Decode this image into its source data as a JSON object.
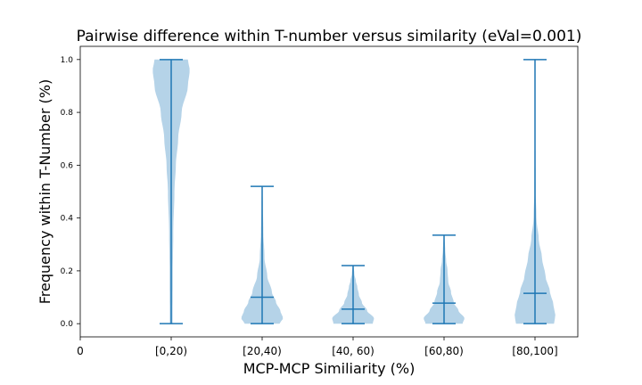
{
  "chart_data": {
    "type": "violin",
    "title": "Pairwise difference within T-number versus similarity (eVal=0.001)",
    "xlabel": "MCP-MCP Similiarity (%)",
    "ylabel": "Frequency within T-Number (%)",
    "ylim": [
      -0.05,
      1.05
    ],
    "yticks": [
      "0.0",
      "0.2",
      "0.4",
      "0.6",
      "0.8",
      "1.0"
    ],
    "xticks": [
      "0",
      "[0,20)",
      "[20,40)",
      "[40, 60)",
      "[60,80)",
      "[80,100]"
    ],
    "fill_color": "#b5d3e8",
    "line_color": "#1f77b4",
    "violins": [
      {
        "category": "[0,20)",
        "min": 0.0,
        "max": 1.0,
        "mean": null,
        "density": [
          [
            0.0,
            0.06
          ],
          [
            0.2,
            0.07
          ],
          [
            0.35,
            0.09
          ],
          [
            0.5,
            0.14
          ],
          [
            0.6,
            0.2
          ],
          [
            0.7,
            0.3
          ],
          [
            0.8,
            0.45
          ],
          [
            0.9,
            0.72
          ],
          [
            0.96,
            0.8
          ],
          [
            1.0,
            0.72
          ]
        ]
      },
      {
        "category": "[20,40)",
        "min": 0.0,
        "max": 0.52,
        "mean": 0.1,
        "density": [
          [
            0.0,
            0.75
          ],
          [
            0.02,
            0.9
          ],
          [
            0.05,
            0.78
          ],
          [
            0.08,
            0.6
          ],
          [
            0.12,
            0.42
          ],
          [
            0.18,
            0.22
          ],
          [
            0.25,
            0.1
          ],
          [
            0.35,
            0.05
          ],
          [
            0.45,
            0.03
          ],
          [
            0.52,
            0.02
          ]
        ]
      },
      {
        "category": "[40, 60)",
        "min": 0.0,
        "max": 0.22,
        "mean": 0.055,
        "density": [
          [
            0.0,
            0.85
          ],
          [
            0.02,
            0.9
          ],
          [
            0.05,
            0.6
          ],
          [
            0.08,
            0.38
          ],
          [
            0.11,
            0.25
          ],
          [
            0.14,
            0.18
          ],
          [
            0.16,
            0.12
          ],
          [
            0.19,
            0.05
          ],
          [
            0.22,
            0.02
          ]
        ]
      },
      {
        "category": "[60,80)",
        "min": 0.0,
        "max": 0.335,
        "mean": 0.078,
        "density": [
          [
            0.0,
            0.8
          ],
          [
            0.02,
            0.88
          ],
          [
            0.05,
            0.62
          ],
          [
            0.08,
            0.42
          ],
          [
            0.12,
            0.3
          ],
          [
            0.16,
            0.18
          ],
          [
            0.2,
            0.15
          ],
          [
            0.24,
            0.09
          ],
          [
            0.28,
            0.05
          ],
          [
            0.335,
            0.02
          ]
        ]
      },
      {
        "category": "[80,100]",
        "min": 0.0,
        "max": 1.0,
        "mean": 0.115,
        "density": [
          [
            0.0,
            0.82
          ],
          [
            0.03,
            0.88
          ],
          [
            0.07,
            0.8
          ],
          [
            0.12,
            0.65
          ],
          [
            0.18,
            0.45
          ],
          [
            0.25,
            0.3
          ],
          [
            0.32,
            0.16
          ],
          [
            0.4,
            0.06
          ],
          [
            0.5,
            0.03
          ],
          [
            0.7,
            0.02
          ],
          [
            1.0,
            0.01
          ]
        ]
      }
    ]
  }
}
